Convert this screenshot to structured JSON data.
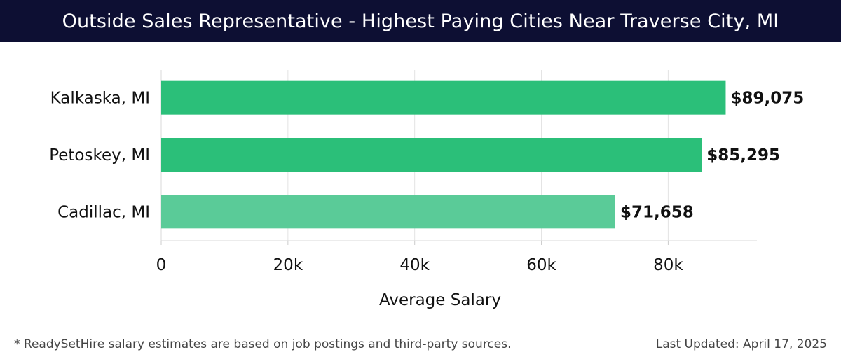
{
  "header": {
    "title": "Outside Sales Representative - Highest Paying Cities Near Traverse City, MI"
  },
  "colors": {
    "header_bg": "#0d0f33",
    "bar_primary": "#2bbf79",
    "bar_secondary": "#5acb98"
  },
  "chart_data": {
    "type": "bar",
    "orientation": "horizontal",
    "title": "Outside Sales Representative - Highest Paying Cities Near Traverse City, MI",
    "categories": [
      "Kalkaska, MI",
      "Petoskey, MI",
      "Cadillac, MI"
    ],
    "values": [
      89075,
      85295,
      71658
    ],
    "value_labels": [
      "$89,075",
      "$85,295",
      "$71,658"
    ],
    "bar_colors": [
      "#2bbf79",
      "#2bbf79",
      "#5acb98"
    ],
    "xlabel": "Average Salary",
    "ylabel": "",
    "xlim": [
      0,
      94000
    ],
    "xticks": [
      0,
      20000,
      40000,
      60000,
      80000
    ],
    "xtick_labels": [
      "0",
      "20k",
      "40k",
      "60k",
      "80k"
    ],
    "grid": "vertical",
    "legend": "none"
  },
  "footer": {
    "note": "* ReadySetHire salary estimates are based on job postings and third-party sources.",
    "updated": "Last Updated: April 17, 2025"
  }
}
